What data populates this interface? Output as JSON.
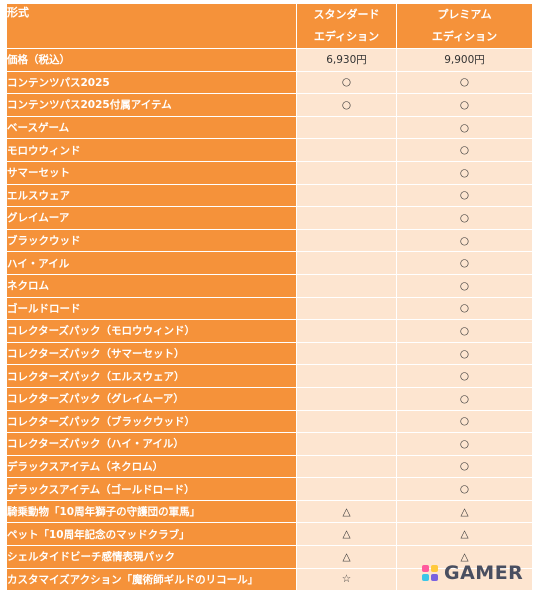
{
  "table": {
    "header": {
      "name": "形式",
      "standard": "スタンダード",
      "standard_sub": "エディション",
      "premium": "プレミアム",
      "premium_sub": "エディション"
    },
    "rows": [
      {
        "name": "価格（税込）",
        "standard": "6,930円",
        "premium": "9,900円"
      },
      {
        "name": "コンテンツパス2025",
        "standard": "○",
        "premium": "○"
      },
      {
        "name": "コンテンツパス2025付属アイテム",
        "standard": "○",
        "premium": "○"
      },
      {
        "name": "ベースゲーム",
        "standard": "",
        "premium": "○"
      },
      {
        "name": "モロウウィンド",
        "standard": "",
        "premium": "○"
      },
      {
        "name": "サマーセット",
        "standard": "",
        "premium": "○"
      },
      {
        "name": "エルスウェア",
        "standard": "",
        "premium": "○"
      },
      {
        "name": "グレイムーア",
        "standard": "",
        "premium": "○"
      },
      {
        "name": "ブラックウッド",
        "standard": "",
        "premium": "○"
      },
      {
        "name": "ハイ・アイル",
        "standard": "",
        "premium": "○"
      },
      {
        "name": "ネクロム",
        "standard": "",
        "premium": "○"
      },
      {
        "name": "ゴールドロード",
        "standard": "",
        "premium": "○"
      },
      {
        "name": "コレクターズパック（モロウウィンド）",
        "standard": "",
        "premium": "○"
      },
      {
        "name": "コレクターズパック（サマーセット）",
        "standard": "",
        "premium": "○"
      },
      {
        "name": "コレクターズパック（エルスウェア）",
        "standard": "",
        "premium": "○"
      },
      {
        "name": "コレクターズパック（グレイムーア）",
        "standard": "",
        "premium": "○"
      },
      {
        "name": "コレクターズパック（ブラックウッド）",
        "standard": "",
        "premium": "○"
      },
      {
        "name": "コレクターズパック（ハイ・アイル）",
        "standard": "",
        "premium": "○"
      },
      {
        "name": "デラックスアイテム（ネクロム）",
        "standard": "",
        "premium": "○"
      },
      {
        "name": "デラックスアイテム（ゴールドロード）",
        "standard": "",
        "premium": "○"
      },
      {
        "name": "騎乗動物「10周年獅子の守護団の軍馬」",
        "standard": "△",
        "premium": "△"
      },
      {
        "name": "ペット「10周年記念のマッドクラブ」",
        "standard": "△",
        "premium": "△"
      },
      {
        "name": "シェルタイドビーチ感情表現パック",
        "standard": "△",
        "premium": "△"
      },
      {
        "name": "カスタマイズアクション「魔術師ギルドのリコール」",
        "standard": "☆",
        "premium": ""
      }
    ]
  },
  "watermark": {
    "text": "GAMER",
    "icon": "gamer-logo-icon"
  },
  "colors": {
    "header": "#f5923a",
    "cell": "#fde5d0",
    "logo_text": "#4a4f60"
  }
}
